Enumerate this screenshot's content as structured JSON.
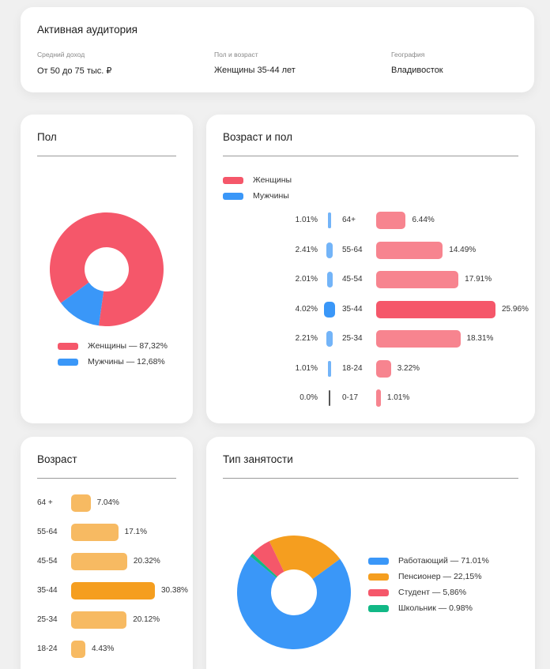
{
  "summary": {
    "title": "Активная аудитория",
    "columns": [
      {
        "label": "Средний доход",
        "value": "От 50 до 75 тыс. ₽"
      },
      {
        "label": "Пол и возраст",
        "value": "Женщины 35-44 лет"
      },
      {
        "label": "География",
        "value": "Владивосток"
      }
    ]
  },
  "colors": {
    "female": "#F5576A",
    "female_light": "#F7848F",
    "male": "#3A97F8",
    "male_light": "#73B4F8",
    "male_zero": "#555555",
    "age": "#F7BA62",
    "age_highlight": "#F59E1F",
    "working": "#3A97F8",
    "pensioner": "#F59E1F",
    "student": "#F5576A",
    "schoolchild": "#12B886"
  },
  "chart_data": [
    {
      "id": "gender",
      "type": "pie",
      "title": "Пол",
      "slices": [
        {
          "name": "Женщины",
          "value": 87.32,
          "legend": "Женщины — 87,32%",
          "color": "#F5576A"
        },
        {
          "name": "Мужчины",
          "value": 12.68,
          "legend": "Мужчины  — 12,68%",
          "color": "#3A97F8"
        }
      ]
    },
    {
      "id": "age_gender",
      "type": "bar",
      "title": "Возраст и пол",
      "legend": [
        {
          "name": "Женщины",
          "color": "#F5576A"
        },
        {
          "name": "Мужчины",
          "color": "#3A97F8"
        }
      ],
      "categories": [
        "64+",
        "55-64",
        "45-54",
        "35-44",
        "25-34",
        "18-24",
        "0-17"
      ],
      "series": [
        {
          "name": "Мужчины",
          "values": [
            1.01,
            2.41,
            2.01,
            4.02,
            2.21,
            1.01,
            0.0
          ],
          "labels": [
            "1.01%",
            "2.41%",
            "2.01%",
            "4.02%",
            "2.21%",
            "1.01%",
            "0.0%"
          ]
        },
        {
          "name": "Женщины",
          "values": [
            6.44,
            14.49,
            17.91,
            25.96,
            18.31,
            3.22,
            1.01
          ],
          "labels": [
            "6.44%",
            "14.49%",
            "17.91%",
            "25.96%",
            "18.31%",
            "3.22%",
            "1.01%"
          ]
        }
      ],
      "highlight": "35-44"
    },
    {
      "id": "age",
      "type": "bar",
      "title": "Возраст",
      "categories": [
        "64 +",
        "55-64",
        "45-54",
        "35-44",
        "25-34",
        "18-24"
      ],
      "values": [
        7.04,
        17.1,
        20.32,
        30.38,
        20.12,
        4.43
      ],
      "labels": [
        "7.04%",
        "17.1%",
        "20.32%",
        "30.38%",
        "20.12%",
        "4.43%"
      ],
      "highlight": "35-44"
    },
    {
      "id": "employment",
      "type": "pie",
      "title": "Тип занятости",
      "slices": [
        {
          "name": "Работающий",
          "value": 71.01,
          "legend": "Работающий — 71.01%",
          "color": "#3A97F8"
        },
        {
          "name": "Пенсионер",
          "value": 22.15,
          "legend": "Пенсионер — 22,15%",
          "color": "#F59E1F"
        },
        {
          "name": "Студент",
          "value": 5.86,
          "legend": "Студент — 5,86%",
          "color": "#F5576A"
        },
        {
          "name": "Школьник",
          "value": 0.98,
          "legend": "Школьник — 0.98%",
          "color": "#12B886"
        }
      ]
    }
  ]
}
